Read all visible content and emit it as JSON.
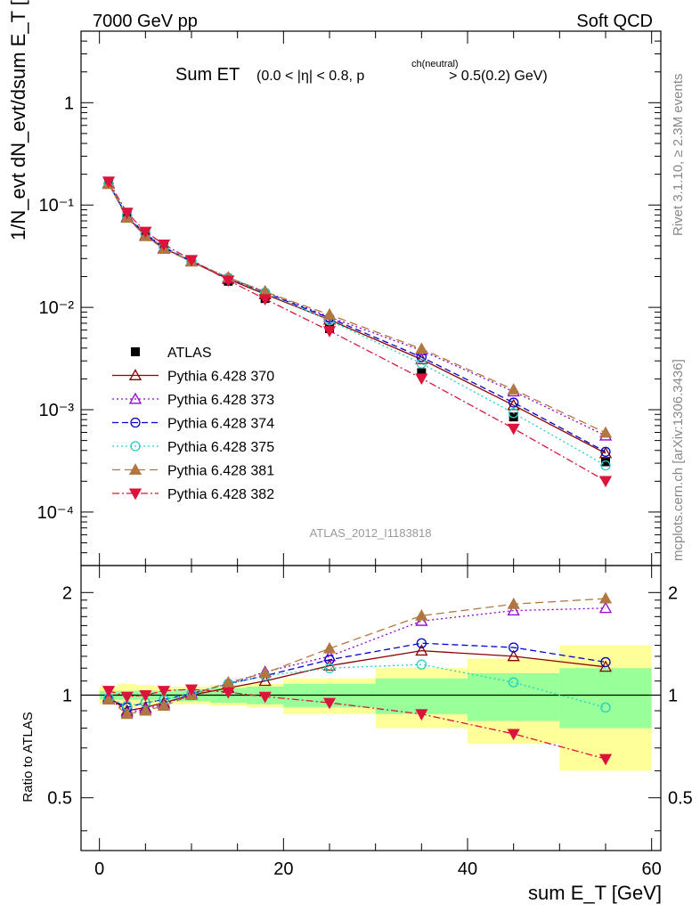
{
  "header": {
    "left": "7000 GeV pp",
    "right": "Soft QCD"
  },
  "side_labels": {
    "rivet": "Rivet 3.1.10, ≥ 2.3M events",
    "mcplots": "mcplots.cern.ch [arXiv:1306.3436]"
  },
  "main_plot": {
    "title_main": "Sum ET",
    "title_cut": "(0.0 < |η| < 0.8, p",
    "title_cut_sup": "ch(neutral)",
    "title_cut_end": "> 0.5(0.2) GeV)",
    "analysis_id": "ATLAS_2012_I1183818",
    "ylabel": "1/N_evt dN_evt/dsum E_T [GeV^-1]",
    "yticks": [
      "10⁻⁴",
      "10⁻³",
      "10⁻²",
      "10⁻¹",
      "1"
    ]
  },
  "ratio_plot": {
    "ylabel": "Ratio to ATLAS",
    "yticks_left": [
      "0.5",
      "1",
      "2"
    ],
    "yticks_right": [
      "0.5",
      "1",
      "2"
    ]
  },
  "xaxis": {
    "label": "sum E_T [GeV]",
    "ticks": [
      "0",
      "20",
      "40",
      "60"
    ]
  },
  "colors": {
    "data": "#000000",
    "band_inner": "#99ff99",
    "band_outer": "#ffff99",
    "p370": "#8b0000",
    "p373": "#9400d3",
    "p374": "#0000cd",
    "p375": "#20d0c0",
    "p381": "#b07840",
    "p382": "#dc143c"
  },
  "chart_data": {
    "type": "scatter",
    "x_unit": "GeV",
    "xlim": [
      -2,
      61
    ],
    "ylim_main": [
      3e-05,
      5
    ],
    "ylim_ratio": [
      0.35,
      2.4
    ],
    "yscale_main": "log",
    "yscale_ratio": "log",
    "x": [
      1,
      3,
      5,
      7,
      10,
      14,
      18,
      25,
      35,
      45,
      55
    ],
    "bin_edges": [
      0,
      2,
      4,
      6,
      8,
      12,
      16,
      20,
      30,
      40,
      50,
      60
    ],
    "data": {
      "name": "ATLAS",
      "values": [
        0.165,
        0.085,
        0.055,
        0.04,
        0.028,
        0.018,
        0.0122,
        0.0062,
        0.0023,
        0.00085,
        0.00031
      ],
      "band_inner_rel": [
        0.03,
        0.03,
        0.03,
        0.03,
        0.04,
        0.05,
        0.06,
        0.08,
        0.12,
        0.16,
        0.2
      ],
      "band_outer_rel": [
        0.06,
        0.08,
        0.07,
        0.06,
        0.06,
        0.07,
        0.08,
        0.12,
        0.2,
        0.28,
        0.4
      ]
    },
    "series": [
      {
        "name": "Pythia 6.428 370",
        "key": "p370",
        "marker": "triangle-up-open",
        "dash": "solid",
        "ratio": [
          0.99,
          0.9,
          0.92,
          0.95,
          1.0,
          1.05,
          1.1,
          1.22,
          1.35,
          1.3,
          1.21
        ]
      },
      {
        "name": "Pythia 6.428 373",
        "key": "p373",
        "marker": "triangle-up-open",
        "dash": "dot",
        "ratio": [
          0.98,
          0.89,
          0.91,
          0.94,
          1.01,
          1.08,
          1.17,
          1.3,
          1.65,
          1.77,
          1.8
        ]
      },
      {
        "name": "Pythia 6.428 374",
        "key": "p374",
        "marker": "circle-open",
        "dash": "dash",
        "ratio": [
          0.98,
          0.92,
          0.95,
          0.97,
          1.01,
          1.08,
          1.14,
          1.27,
          1.42,
          1.38,
          1.25
        ]
      },
      {
        "name": "Pythia 6.428 375",
        "key": "p375",
        "marker": "circle-open",
        "dash": "dot",
        "ratio": [
          0.98,
          0.93,
          0.95,
          0.97,
          1.01,
          1.08,
          1.14,
          1.2,
          1.23,
          1.09,
          0.92
        ]
      },
      {
        "name": "Pythia 6.428 381",
        "key": "p381",
        "marker": "triangle-up-filled",
        "dash": "longdash",
        "ratio": [
          0.97,
          0.88,
          0.9,
          0.93,
          1.0,
          1.09,
          1.16,
          1.37,
          1.71,
          1.85,
          1.92
        ]
      },
      {
        "name": "Pythia 6.428 382",
        "key": "p382",
        "marker": "triangle-down-filled",
        "dash": "dashdot",
        "ratio": [
          1.03,
          0.99,
          1.0,
          1.03,
          1.04,
          1.02,
          0.99,
          0.95,
          0.88,
          0.77,
          0.65
        ]
      }
    ]
  }
}
